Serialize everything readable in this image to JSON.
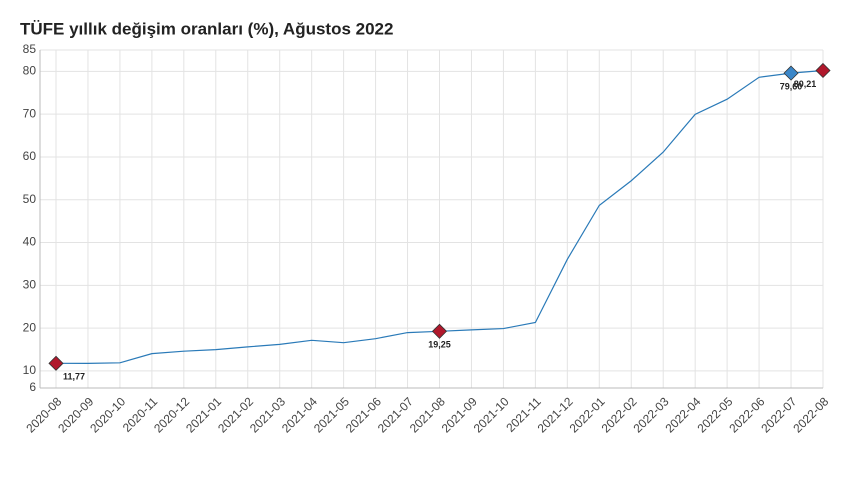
{
  "chart_data": {
    "type": "line",
    "title": "TÜFE yıllık değişim oranları (%), Ağustos 2022",
    "categories": [
      "2020-08",
      "2020-09",
      "2020-10",
      "2020-11",
      "2020-12",
      "2021-01",
      "2021-02",
      "2021-03",
      "2021-04",
      "2021-05",
      "2021-06",
      "2021-07",
      "2021-08",
      "2021-09",
      "2021-10",
      "2021-11",
      "2021-12",
      "2022-01",
      "2022-02",
      "2022-03",
      "2022-04",
      "2022-05",
      "2022-06",
      "2022-07",
      "2022-08"
    ],
    "series": [
      {
        "color": "#2a7ab8",
        "values": [
          11.77,
          11.75,
          11.89,
          14.03,
          14.6,
          14.97,
          15.61,
          16.19,
          17.14,
          16.59,
          17.53,
          18.95,
          19.25,
          19.58,
          19.89,
          21.31,
          36.08,
          48.69,
          54.44,
          61.14,
          69.97,
          73.5,
          78.62,
          79.6,
          80.21
        ],
        "value_labels": [
          "11,77",
          null,
          null,
          null,
          null,
          null,
          null,
          null,
          null,
          null,
          null,
          null,
          "19,25",
          null,
          null,
          null,
          null,
          null,
          null,
          null,
          null,
          null,
          null,
          "79,60",
          "80,21"
        ],
        "marker_colors": [
          "#b0182c",
          null,
          null,
          null,
          null,
          null,
          null,
          null,
          null,
          null,
          null,
          null,
          "#b0182c",
          null,
          null,
          null,
          null,
          null,
          null,
          null,
          null,
          null,
          null,
          "#3a86c8",
          "#b0182c"
        ]
      }
    ],
    "ylim": [
      6,
      85
    ],
    "yticks": [
      6,
      10,
      20,
      30,
      40,
      50,
      60,
      70,
      80,
      85
    ],
    "grid": true
  }
}
